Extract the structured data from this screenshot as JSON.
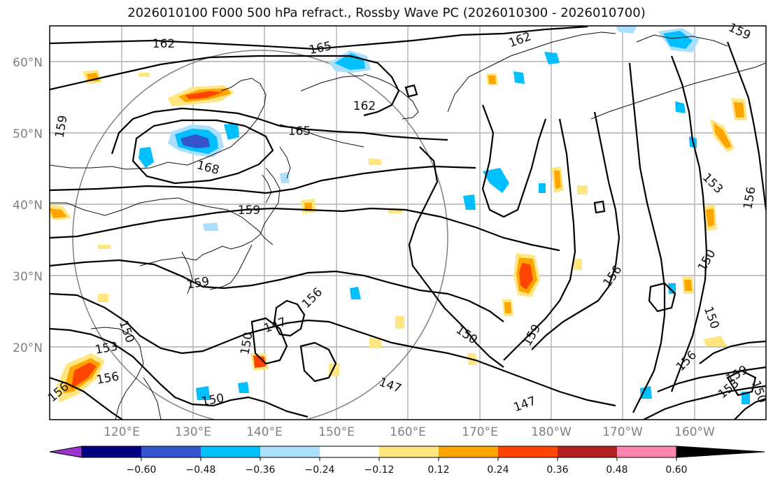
{
  "title": "2026010100 F000 500 hPa refract., Rossby Wave PC (2026010300 - 2026010700)",
  "lat_labels": [
    "60°N",
    "50°N",
    "40°N",
    "30°N",
    "20°N"
  ],
  "lon_labels": [
    "120°E",
    "130°E",
    "140°E",
    "150°E",
    "160°E",
    "170°E",
    "180°W",
    "170°W",
    "160°W"
  ],
  "colorbar": {
    "colors": [
      "#9933cc",
      "#000080",
      "#3355cc",
      "#00bfff",
      "#aadfff",
      "#ffffff",
      "#ffe680",
      "#ffa500",
      "#ff4500",
      "#b22222",
      "#ff85b0"
    ],
    "tick_labels": [
      "−0.60",
      "−0.48",
      "−0.36",
      "−0.24",
      "−0.12",
      "0.12",
      "0.24",
      "0.36",
      "0.48",
      "0.60"
    ]
  },
  "contour_labels": [
    "162",
    "165",
    "162",
    "162",
    "159",
    "159",
    "165",
    "168",
    "159",
    "159",
    "156",
    "150",
    "147",
    "153",
    "150",
    "156",
    "150",
    "156",
    "147",
    "147",
    "150",
    "159",
    "156",
    "153",
    "150",
    "150",
    "156",
    "159",
    "153",
    "156",
    "150"
  ]
}
